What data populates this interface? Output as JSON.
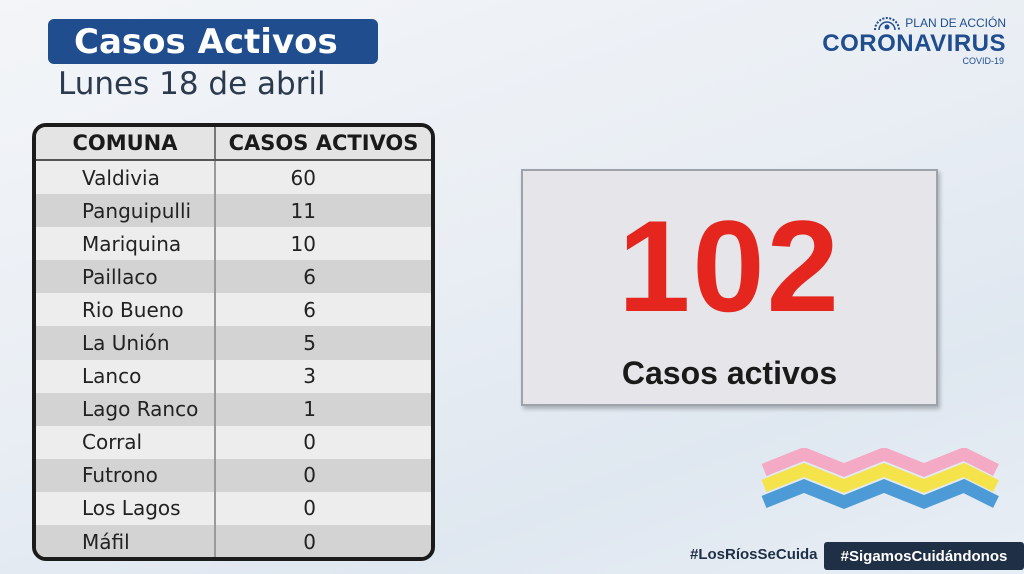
{
  "header": {
    "title": "Casos Activos",
    "date": "Lunes 18 de abril"
  },
  "logo": {
    "top": "PLAN DE ACCIÓN",
    "main": "CORONAVIRUS",
    "sub": "COVID-19",
    "icon": "government-seal-icon"
  },
  "table": {
    "headers": [
      "COMUNA",
      "CASOS ACTIVOS"
    ],
    "rows": [
      {
        "comuna": "Valdivia",
        "casos": "60"
      },
      {
        "comuna": "Panguipulli",
        "casos": "11"
      },
      {
        "comuna": "Mariquina",
        "casos": "10"
      },
      {
        "comuna": "Paillaco",
        "casos": "6"
      },
      {
        "comuna": "Rio Bueno",
        "casos": "6"
      },
      {
        "comuna": "La Unión",
        "casos": "5"
      },
      {
        "comuna": "Lanco",
        "casos": "3"
      },
      {
        "comuna": "Lago Ranco",
        "casos": "1"
      },
      {
        "comuna": "Corral",
        "casos": "0"
      },
      {
        "comuna": "Futrono",
        "casos": "0"
      },
      {
        "comuna": "Los Lagos",
        "casos": "0"
      },
      {
        "comuna": "Máfil",
        "casos": "0"
      }
    ]
  },
  "summary": {
    "total": "102",
    "label": "Casos activos"
  },
  "footer": {
    "hashtag1": "#LosRíosSeCuida",
    "hashtag2": "#SigamosCuidándonos"
  },
  "colors": {
    "brand_blue": "#1f4d8e",
    "accent_red": "#e4261f",
    "footer_dark": "#1f2f45",
    "zigzag": [
      "#f4a9c4",
      "#f5e34b",
      "#4d9bd6"
    ]
  }
}
